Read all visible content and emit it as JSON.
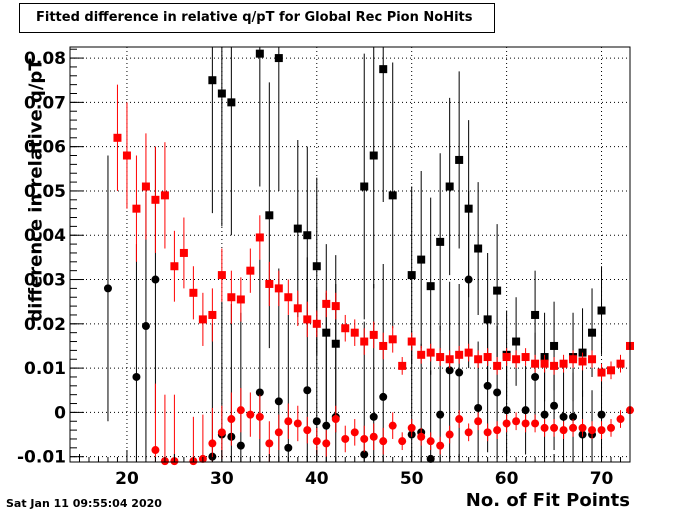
{
  "chart_data": {
    "type": "scatter",
    "title": "Fitted difference in relative q/pT for Global Rec Pion NoHits",
    "xlabel": "No. of Fit Points",
    "ylabel": "difference in relative q/pT",
    "xlim": [
      14,
      73
    ],
    "ylim": [
      -0.0112,
      0.0825
    ],
    "x_ticks": [
      20,
      30,
      40,
      50,
      60,
      70
    ],
    "y_ticks": [
      -0.01,
      0,
      0.01,
      0.02,
      0.03,
      0.04,
      0.05,
      0.06,
      0.07,
      0.08
    ],
    "y_tick_labels": [
      "-0.01",
      "0",
      "0.01",
      "0.02",
      "0.03",
      "0.04",
      "0.05",
      "0.06",
      "0.07",
      "0.08"
    ],
    "grid": true,
    "series": [
      {
        "marker": "square",
        "color": "#000000",
        "points": [
          [
            29,
            0.075,
            0.03
          ],
          [
            30,
            0.072,
            0.03
          ],
          [
            31,
            0.07,
            0.03
          ],
          [
            34,
            0.081,
            0.03
          ],
          [
            35,
            0.0445,
            0.03
          ],
          [
            36,
            0.08,
            0.03
          ],
          [
            38,
            0.0415,
            0.02
          ],
          [
            39,
            0.04,
            0.02
          ],
          [
            40,
            0.033,
            0.02
          ],
          [
            41,
            0.018,
            0.02
          ],
          [
            42,
            0.0155,
            0.02
          ],
          [
            45,
            0.051,
            0.03
          ],
          [
            46,
            0.058,
            0.03
          ],
          [
            47,
            0.0775,
            0.03
          ],
          [
            48,
            0.049,
            0.03
          ],
          [
            50,
            0.031,
            0.02
          ],
          [
            51,
            0.0345,
            0.02
          ],
          [
            52,
            0.0285,
            0.02
          ],
          [
            53,
            0.0385,
            0.02
          ],
          [
            54,
            0.051,
            0.02
          ],
          [
            55,
            0.057,
            0.02
          ],
          [
            56,
            0.046,
            0.02
          ],
          [
            57,
            0.037,
            0.015
          ],
          [
            58,
            0.021,
            0.015
          ],
          [
            59,
            0.0275,
            0.015
          ],
          [
            60,
            0.013,
            0.01
          ],
          [
            61,
            0.016,
            0.01
          ],
          [
            63,
            0.022,
            0.01
          ],
          [
            64,
            0.0125,
            0.01
          ],
          [
            65,
            0.015,
            0.01
          ],
          [
            67,
            0.0125,
            0.01
          ],
          [
            68,
            0.0135,
            0.01
          ],
          [
            69,
            0.018,
            0.01
          ],
          [
            70,
            0.023,
            0.01
          ]
        ]
      },
      {
        "marker": "circle",
        "color": "#000000",
        "points": [
          [
            18,
            0.028,
            0.03
          ],
          [
            21,
            0.008,
            0.03
          ],
          [
            22,
            0.0195,
            0.03
          ],
          [
            23,
            0.03,
            0.03
          ],
          [
            29,
            -0.01,
            0.03
          ],
          [
            30,
            -0.005,
            0.03
          ],
          [
            31,
            -0.0055,
            0.03
          ],
          [
            32,
            -0.0075,
            0.03
          ],
          [
            34,
            0.0045,
            0.03
          ],
          [
            36,
            0.0025,
            0.03
          ],
          [
            37,
            -0.008,
            0.03
          ],
          [
            39,
            0.005,
            0.03
          ],
          [
            40,
            -0.002,
            0.03
          ],
          [
            41,
            -0.003,
            0.03
          ],
          [
            42,
            -0.001,
            0.03
          ],
          [
            45,
            -0.0095,
            0.03
          ],
          [
            46,
            -0.001,
            0.03
          ],
          [
            47,
            0.0035,
            0.03
          ],
          [
            50,
            -0.005,
            0.02
          ],
          [
            51,
            -0.0045,
            0.02
          ],
          [
            52,
            -0.0105,
            0.02
          ],
          [
            53,
            -0.0005,
            0.02
          ],
          [
            54,
            0.0095,
            0.02
          ],
          [
            55,
            0.009,
            0.02
          ],
          [
            56,
            0.03,
            0.02
          ],
          [
            57,
            0.001,
            0.015
          ],
          [
            58,
            0.006,
            0.015
          ],
          [
            59,
            0.0045,
            0.015
          ],
          [
            60,
            0.0005,
            0.01
          ],
          [
            62,
            0.0005,
            0.01
          ],
          [
            63,
            0.008,
            0.01
          ],
          [
            64,
            -0.0005,
            0.01
          ],
          [
            65,
            0.0015,
            0.01
          ],
          [
            66,
            -0.001,
            0.01
          ],
          [
            67,
            -0.001,
            0.01
          ],
          [
            68,
            -0.005,
            0.01
          ],
          [
            69,
            -0.005,
            0.01
          ],
          [
            70,
            -0.0005,
            0.01
          ]
        ]
      },
      {
        "marker": "square",
        "color": "#ff0000",
        "points": [
          [
            19,
            0.062,
            0.012
          ],
          [
            20,
            0.058,
            0.012
          ],
          [
            21,
            0.046,
            0.012
          ],
          [
            22,
            0.051,
            0.012
          ],
          [
            23,
            0.048,
            0.012
          ],
          [
            24,
            0.049,
            0.012
          ],
          [
            25,
            0.033,
            0.008
          ],
          [
            26,
            0.036,
            0.008
          ],
          [
            27,
            0.027,
            0.006
          ],
          [
            28,
            0.021,
            0.006
          ],
          [
            29,
            0.022,
            0.006
          ],
          [
            30,
            0.031,
            0.006
          ],
          [
            31,
            0.026,
            0.006
          ],
          [
            32,
            0.0255,
            0.005
          ],
          [
            33,
            0.032,
            0.005
          ],
          [
            34,
            0.0395,
            0.005
          ],
          [
            35,
            0.029,
            0.005
          ],
          [
            36,
            0.028,
            0.004
          ],
          [
            37,
            0.026,
            0.004
          ],
          [
            38,
            0.0235,
            0.004
          ],
          [
            39,
            0.021,
            0.004
          ],
          [
            40,
            0.02,
            0.003
          ],
          [
            41,
            0.0245,
            0.003
          ],
          [
            42,
            0.024,
            0.003
          ],
          [
            43,
            0.019,
            0.003
          ],
          [
            44,
            0.018,
            0.003
          ],
          [
            45,
            0.016,
            0.003
          ],
          [
            46,
            0.0175,
            0.003
          ],
          [
            47,
            0.015,
            0.003
          ],
          [
            48,
            0.0165,
            0.003
          ],
          [
            49,
            0.0105,
            0.002
          ],
          [
            50,
            0.016,
            0.002
          ],
          [
            51,
            0.013,
            0.002
          ],
          [
            52,
            0.0135,
            0.002
          ],
          [
            53,
            0.0125,
            0.002
          ],
          [
            54,
            0.012,
            0.002
          ],
          [
            55,
            0.013,
            0.002
          ],
          [
            56,
            0.0135,
            0.002
          ],
          [
            57,
            0.012,
            0.002
          ],
          [
            58,
            0.0125,
            0.002
          ],
          [
            59,
            0.0105,
            0.002
          ],
          [
            60,
            0.0125,
            0.002
          ],
          [
            61,
            0.012,
            0.002
          ],
          [
            62,
            0.0125,
            0.002
          ],
          [
            63,
            0.011,
            0.002
          ],
          [
            64,
            0.011,
            0.002
          ],
          [
            65,
            0.0105,
            0.002
          ],
          [
            66,
            0.011,
            0.002
          ],
          [
            67,
            0.012,
            0.002
          ],
          [
            68,
            0.0115,
            0.002
          ],
          [
            69,
            0.012,
            0.002
          ],
          [
            70,
            0.009,
            0.002
          ],
          [
            71,
            0.0095,
            0.002
          ],
          [
            72,
            0.011,
            0.002
          ],
          [
            73,
            0.015,
            0.006
          ]
        ]
      },
      {
        "marker": "circle",
        "color": "#ff0000",
        "points": [
          [
            23,
            -0.0085,
            0.015
          ],
          [
            24,
            -0.011,
            0.015
          ],
          [
            25,
            -0.011,
            0.015
          ],
          [
            27,
            -0.011,
            0.01
          ],
          [
            28,
            -0.0105,
            0.01
          ],
          [
            29,
            -0.007,
            0.008
          ],
          [
            30,
            -0.0045,
            0.006
          ],
          [
            31,
            -0.0015,
            0.006
          ],
          [
            32,
            0.0005,
            0.005
          ],
          [
            33,
            -0.0005,
            0.005
          ],
          [
            34,
            -0.001,
            0.005
          ],
          [
            35,
            -0.007,
            0.005
          ],
          [
            36,
            -0.0045,
            0.004
          ],
          [
            37,
            -0.002,
            0.004
          ],
          [
            38,
            -0.0025,
            0.004
          ],
          [
            39,
            -0.004,
            0.003
          ],
          [
            40,
            -0.0065,
            0.003
          ],
          [
            41,
            -0.007,
            0.003
          ],
          [
            42,
            -0.0015,
            0.003
          ],
          [
            43,
            -0.006,
            0.003
          ],
          [
            44,
            -0.0045,
            0.003
          ],
          [
            45,
            -0.006,
            0.003
          ],
          [
            46,
            -0.0055,
            0.003
          ],
          [
            47,
            -0.0065,
            0.003
          ],
          [
            48,
            -0.003,
            0.003
          ],
          [
            49,
            -0.0065,
            0.002
          ],
          [
            50,
            -0.0035,
            0.002
          ],
          [
            51,
            -0.0055,
            0.002
          ],
          [
            52,
            -0.0065,
            0.002
          ],
          [
            53,
            -0.0075,
            0.002
          ],
          [
            54,
            -0.005,
            0.002
          ],
          [
            55,
            -0.0015,
            0.002
          ],
          [
            56,
            -0.0045,
            0.002
          ],
          [
            57,
            -0.002,
            0.002
          ],
          [
            58,
            -0.0045,
            0.002
          ],
          [
            59,
            -0.004,
            0.002
          ],
          [
            60,
            -0.0025,
            0.002
          ],
          [
            61,
            -0.002,
            0.002
          ],
          [
            62,
            -0.0025,
            0.002
          ],
          [
            63,
            -0.0025,
            0.002
          ],
          [
            64,
            -0.0035,
            0.002
          ],
          [
            65,
            -0.0035,
            0.002
          ],
          [
            66,
            -0.004,
            0.002
          ],
          [
            67,
            -0.0035,
            0.002
          ],
          [
            68,
            -0.0035,
            0.002
          ],
          [
            69,
            -0.004,
            0.002
          ],
          [
            70,
            -0.004,
            0.002
          ],
          [
            71,
            -0.0035,
            0.002
          ],
          [
            72,
            -0.0015,
            0.002
          ],
          [
            73,
            0.0005,
            0.003
          ]
        ]
      }
    ]
  },
  "footer": {
    "timestamp": "Sat Jan 11 09:55:04 2020"
  }
}
